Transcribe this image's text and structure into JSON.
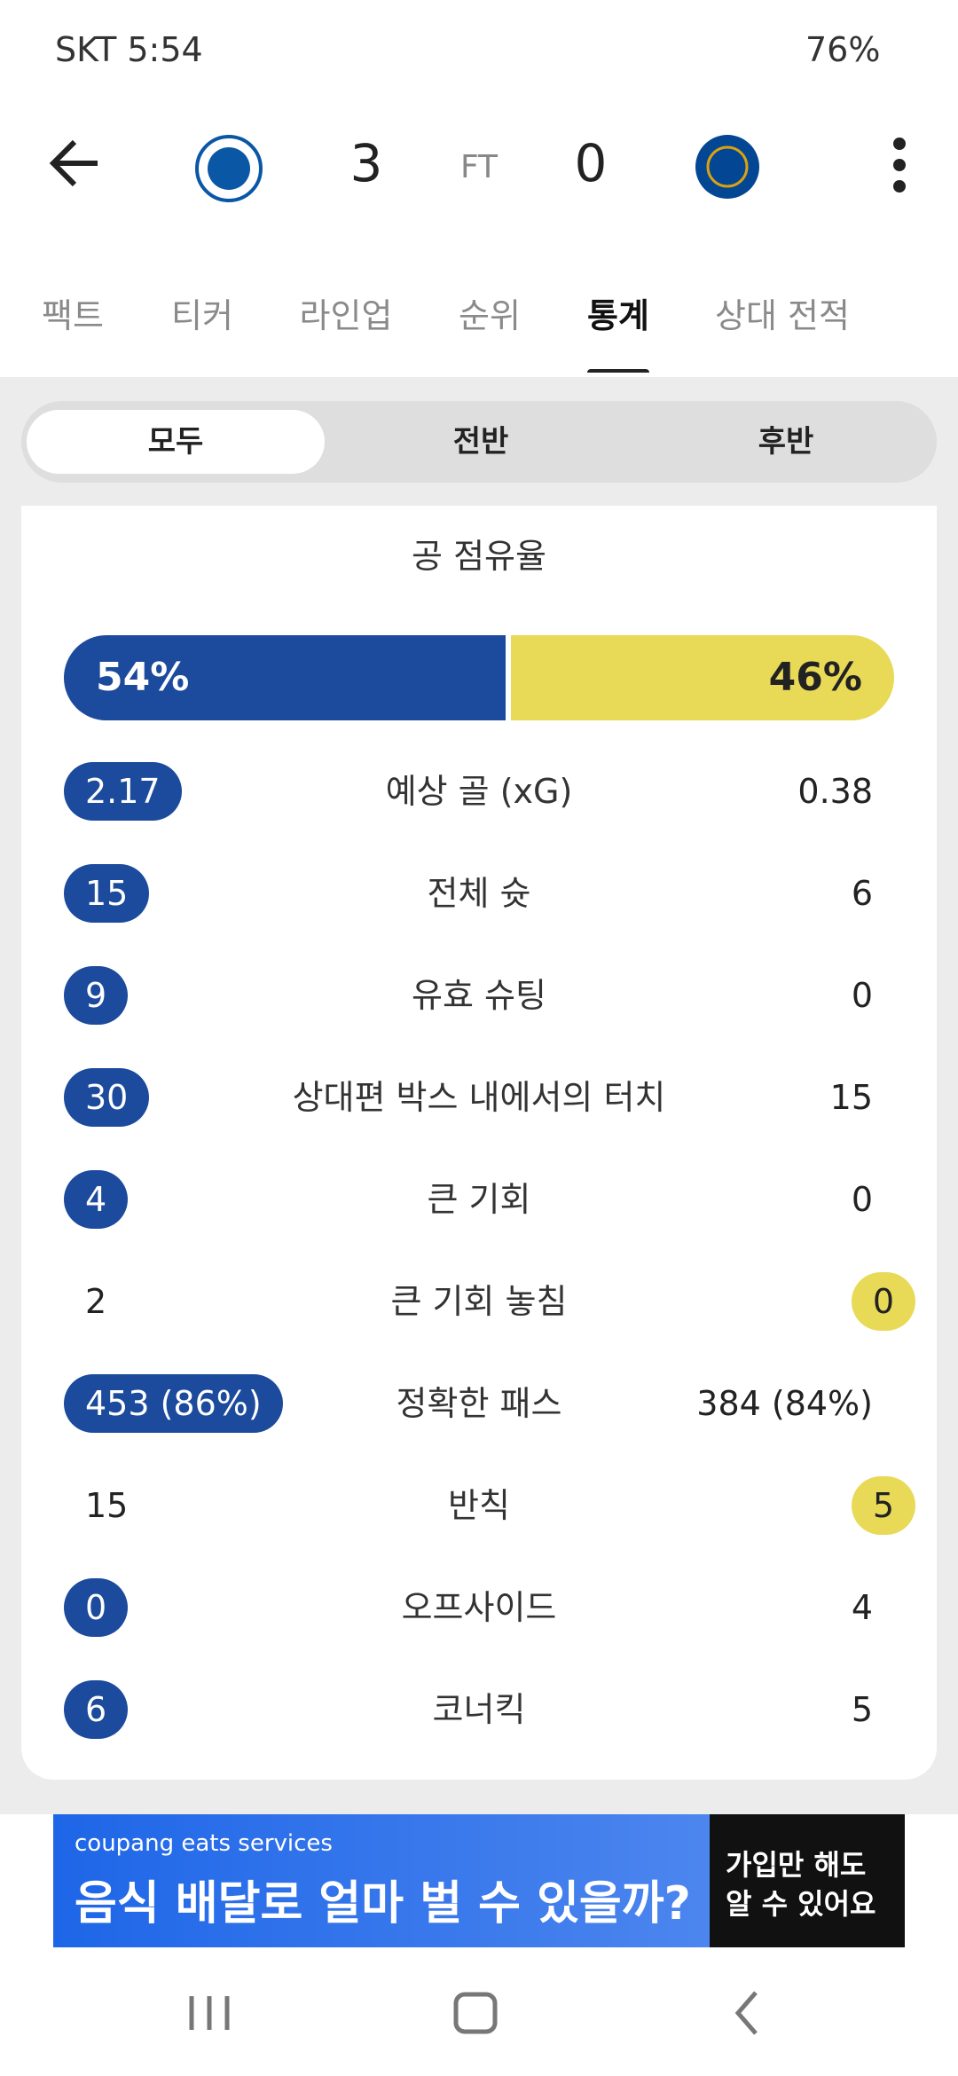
{
  "status_bar": {
    "carrier_time": "SKT 5:54",
    "battery": "76%"
  },
  "header": {
    "home_score": "3",
    "match_status": "FT",
    "away_score": "0"
  },
  "tabs": [
    "팩트",
    "티커",
    "라인업",
    "순위",
    "통계",
    "상대 전적"
  ],
  "segments": [
    "모두",
    "전반",
    "후반"
  ],
  "possession": {
    "title": "공 점유율",
    "home": "54%",
    "away": "46%"
  },
  "stats": [
    {
      "label": "예상 골 (xG)",
      "home": "2.17",
      "away": "0.38",
      "highlight": "home"
    },
    {
      "label": "전체 슛",
      "home": "15",
      "away": "6",
      "highlight": "home"
    },
    {
      "label": "유효 슈팅",
      "home": "9",
      "away": "0",
      "highlight": "home"
    },
    {
      "label": "상대편 박스 내에서의 터치",
      "home": "30",
      "away": "15",
      "highlight": "home"
    },
    {
      "label": "큰 기회",
      "home": "4",
      "away": "0",
      "highlight": "home"
    },
    {
      "label": "큰 기회 놓침",
      "home": "2",
      "away": "0",
      "highlight": "away"
    },
    {
      "label": "정확한 패스",
      "home": "453 (86%)",
      "away": "384 (84%)",
      "highlight": "home"
    },
    {
      "label": "반칙",
      "home": "15",
      "away": "5",
      "highlight": "away"
    },
    {
      "label": "오프사이드",
      "home": "0",
      "away": "4",
      "highlight": "home"
    },
    {
      "label": "코너킥",
      "home": "6",
      "away": "5",
      "highlight": "home"
    }
  ],
  "ad": {
    "brand": "coupang eats services",
    "headline": "음식 배달로 얼마 벌 수 있을까?",
    "side_line1": "가입만 해도",
    "side_line2": "알 수 있어요"
  }
}
